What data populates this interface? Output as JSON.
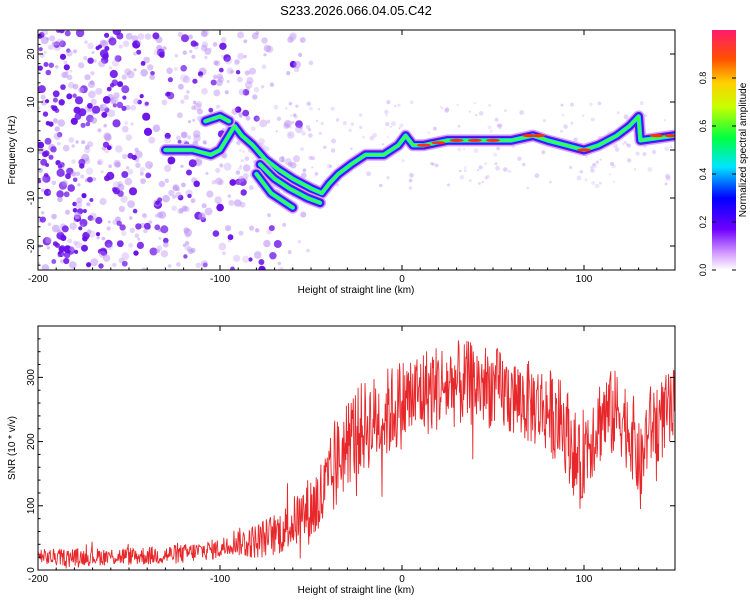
{
  "title": "S233.2026.066.04.05.C42",
  "colors": {
    "axis": "#000000",
    "snr_line": "#e8272a",
    "spec_dot": "#7a1fe0"
  },
  "chart_data": [
    {
      "type": "heatmap",
      "name": "spectrogram",
      "xlabel": "Height of straight line (km)",
      "ylabel": "Frequency (Hz)",
      "xlim": [
        -200,
        150
      ],
      "ylim": [
        -25,
        25
      ],
      "xticks": [
        -200,
        -100,
        0,
        100
      ],
      "yticks": [
        -20,
        -10,
        0,
        10,
        20
      ],
      "ytick_labels": [
        "-20",
        "-10",
        "0",
        "10",
        "20"
      ],
      "colorbar": {
        "label": "Normalized spectral amplitude",
        "range": [
          0,
          1
        ],
        "ticks": [
          "0.0",
          "0.2",
          "0.4",
          "0.6",
          "0.8"
        ],
        "tick_values": [
          0.0,
          0.2,
          0.4,
          0.6,
          0.8
        ]
      },
      "ridge": [
        [
          -130,
          0
        ],
        [
          -115,
          0
        ],
        [
          -105,
          -1
        ],
        [
          -100,
          0
        ],
        [
          -92,
          5
        ],
        [
          -88,
          3
        ],
        [
          -82,
          1
        ],
        [
          -75,
          -2
        ],
        [
          -68,
          -4
        ],
        [
          -60,
          -6
        ],
        [
          -50,
          -8
        ],
        [
          -44,
          -9
        ],
        [
          -40,
          -7
        ],
        [
          -35,
          -5
        ],
        [
          -28,
          -3
        ],
        [
          -20,
          -1
        ],
        [
          -10,
          -1
        ],
        [
          -2,
          1
        ],
        [
          2,
          3
        ],
        [
          6,
          1
        ],
        [
          12,
          1
        ],
        [
          25,
          2
        ],
        [
          40,
          2
        ],
        [
          60,
          2
        ],
        [
          72,
          3
        ],
        [
          80,
          2
        ],
        [
          90,
          1
        ],
        [
          100,
          0
        ],
        [
          108,
          1
        ],
        [
          118,
          3
        ],
        [
          125,
          5
        ],
        [
          130,
          7
        ],
        [
          131,
          2
        ],
        [
          150,
          3
        ]
      ],
      "side_branches": [
        [
          [
            -78,
            -3
          ],
          [
            -70,
            -6
          ],
          [
            -62,
            -8
          ],
          [
            -52,
            -10
          ],
          [
            -45,
            -11
          ]
        ],
        [
          [
            -80,
            -5
          ],
          [
            -72,
            -9
          ],
          [
            -60,
            -12
          ]
        ],
        [
          [
            -108,
            6
          ],
          [
            -100,
            7
          ],
          [
            -95,
            6
          ]
        ]
      ]
    },
    {
      "type": "line",
      "name": "snr",
      "xlabel": "Height of straight line (km)",
      "ylabel": "SNR (10 * v/v)",
      "xlim": [
        -200,
        150
      ],
      "ylim": [
        0,
        380
      ],
      "xticks": [
        -200,
        -100,
        0,
        100
      ],
      "yticks": [
        0,
        100,
        200,
        300
      ],
      "envelope": [
        [
          -200,
          20
        ],
        [
          -180,
          20
        ],
        [
          -160,
          21
        ],
        [
          -140,
          22
        ],
        [
          -120,
          25
        ],
        [
          -110,
          30
        ],
        [
          -100,
          33
        ],
        [
          -92,
          45
        ],
        [
          -85,
          42
        ],
        [
          -75,
          50
        ],
        [
          -65,
          62
        ],
        [
          -55,
          85
        ],
        [
          -50,
          95
        ],
        [
          -45,
          110
        ],
        [
          -40,
          130
        ],
        [
          -35,
          170
        ],
        [
          -30,
          200
        ],
        [
          -25,
          215
        ],
        [
          -20,
          225
        ],
        [
          -10,
          240
        ],
        [
          0,
          260
        ],
        [
          10,
          275
        ],
        [
          20,
          285
        ],
        [
          30,
          290
        ],
        [
          40,
          290
        ],
        [
          50,
          285
        ],
        [
          60,
          270
        ],
        [
          70,
          260
        ],
        [
          80,
          250
        ],
        [
          90,
          220
        ],
        [
          95,
          180
        ],
        [
          98,
          150
        ],
        [
          100,
          190
        ],
        [
          110,
          240
        ],
        [
          120,
          245
        ],
        [
          128,
          200
        ],
        [
          131,
          150
        ],
        [
          135,
          220
        ],
        [
          150,
          250
        ]
      ],
      "noise_amplitude": [
        [
          -200,
          8
        ],
        [
          -100,
          10
        ],
        [
          -60,
          25
        ],
        [
          -40,
          45
        ],
        [
          0,
          45
        ],
        [
          60,
          40
        ],
        [
          100,
          45
        ],
        [
          150,
          40
        ]
      ]
    }
  ]
}
